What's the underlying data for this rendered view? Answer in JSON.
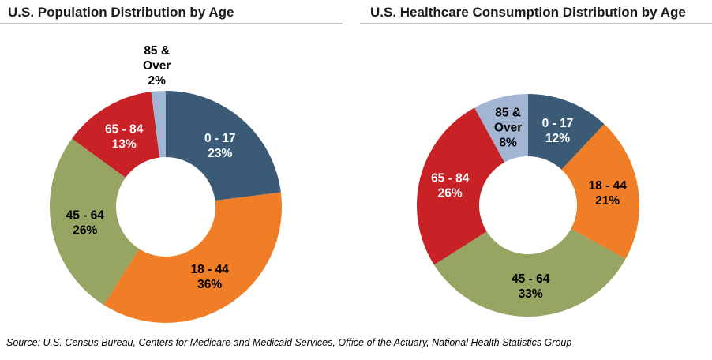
{
  "page": {
    "background_color": "#FFFFFF",
    "source_note": "Source: U.S. Census Bureau, Centers for Medicare and Medicaid Services, Office of the Actuary, National Health Statistics Group"
  },
  "palette": {
    "age_0_17": "#3A5A75",
    "age_18_44": "#F07E26",
    "age_45_64": "#96A562",
    "age_65_84": "#C82227",
    "age_85_over": "#A2B6D4",
    "title_text": "#1A1A1A",
    "title_rule": "#C4C4C4"
  },
  "chart_data": [
    {
      "type": "pie",
      "subtype": "donut",
      "title": "U.S. Population Distribution by Age",
      "unit": "%",
      "start_angle": "12 o'clock",
      "direction": "clockwise",
      "legend": "none (labels on slices)",
      "categories": [
        "0 - 17",
        "18 - 44",
        "45 - 64",
        "65 - 84",
        "85 & Over"
      ],
      "values": [
        23,
        36,
        26,
        13,
        2
      ],
      "segments": [
        {
          "slug": "age-0-17",
          "category": "0 - 17",
          "value": 23,
          "label_lines": [
            "0 - 17",
            "23%"
          ],
          "color": "#3A5A75",
          "label_color": "#FFFFFF",
          "label_placement": "inside"
        },
        {
          "slug": "age-18-44",
          "category": "18 - 44",
          "value": 36,
          "label_lines": [
            "18 - 44",
            "36%"
          ],
          "color": "#F07E26",
          "label_color": "#000000",
          "label_placement": "inside"
        },
        {
          "slug": "age-45-64",
          "category": "45 - 64",
          "value": 26,
          "label_lines": [
            "45 - 64",
            "26%"
          ],
          "color": "#96A562",
          "label_color": "#000000",
          "label_placement": "inside"
        },
        {
          "slug": "age-65-84",
          "category": "65 - 84",
          "value": 13,
          "label_lines": [
            "65 - 84",
            "13%"
          ],
          "color": "#C82227",
          "label_color": "#FFFFFF",
          "label_placement": "inside"
        },
        {
          "slug": "age-85-over",
          "category": "85 & Over",
          "value": 2,
          "label_lines": [
            "85 &",
            "Over",
            "2%"
          ],
          "color": "#A2B6D4",
          "label_color": "#000000",
          "label_placement": "outside"
        }
      ]
    },
    {
      "type": "pie",
      "subtype": "donut",
      "title": "U.S. Healthcare Consumption Distribution by Age",
      "unit": "%",
      "start_angle": "12 o'clock",
      "direction": "clockwise",
      "legend": "none (labels on slices)",
      "categories": [
        "0 - 17",
        "18 - 44",
        "45 - 64",
        "65 - 84",
        "85 & Over"
      ],
      "values": [
        12,
        21,
        33,
        26,
        8
      ],
      "segments": [
        {
          "slug": "age-0-17",
          "category": "0 - 17",
          "value": 12,
          "label_lines": [
            "0 - 17",
            "12%"
          ],
          "color": "#3A5A75",
          "label_color": "#FFFFFF",
          "label_placement": "inside"
        },
        {
          "slug": "age-18-44",
          "category": "18 - 44",
          "value": 21,
          "label_lines": [
            "18 - 44",
            "21%"
          ],
          "color": "#F07E26",
          "label_color": "#000000",
          "label_placement": "inside"
        },
        {
          "slug": "age-45-64",
          "category": "45 - 64",
          "value": 33,
          "label_lines": [
            "45 - 64",
            "33%"
          ],
          "color": "#96A562",
          "label_color": "#000000",
          "label_placement": "inside"
        },
        {
          "slug": "age-65-84",
          "category": "65 - 84",
          "value": 26,
          "label_lines": [
            "65 - 84",
            "26%"
          ],
          "color": "#C82227",
          "label_color": "#FFFFFF",
          "label_placement": "inside"
        },
        {
          "slug": "age-85-over",
          "category": "85 & Over",
          "value": 8,
          "label_lines": [
            "85 &",
            "Over",
            "8%"
          ],
          "color": "#A2B6D4",
          "label_color": "#000000",
          "label_placement": "inside"
        }
      ]
    }
  ]
}
